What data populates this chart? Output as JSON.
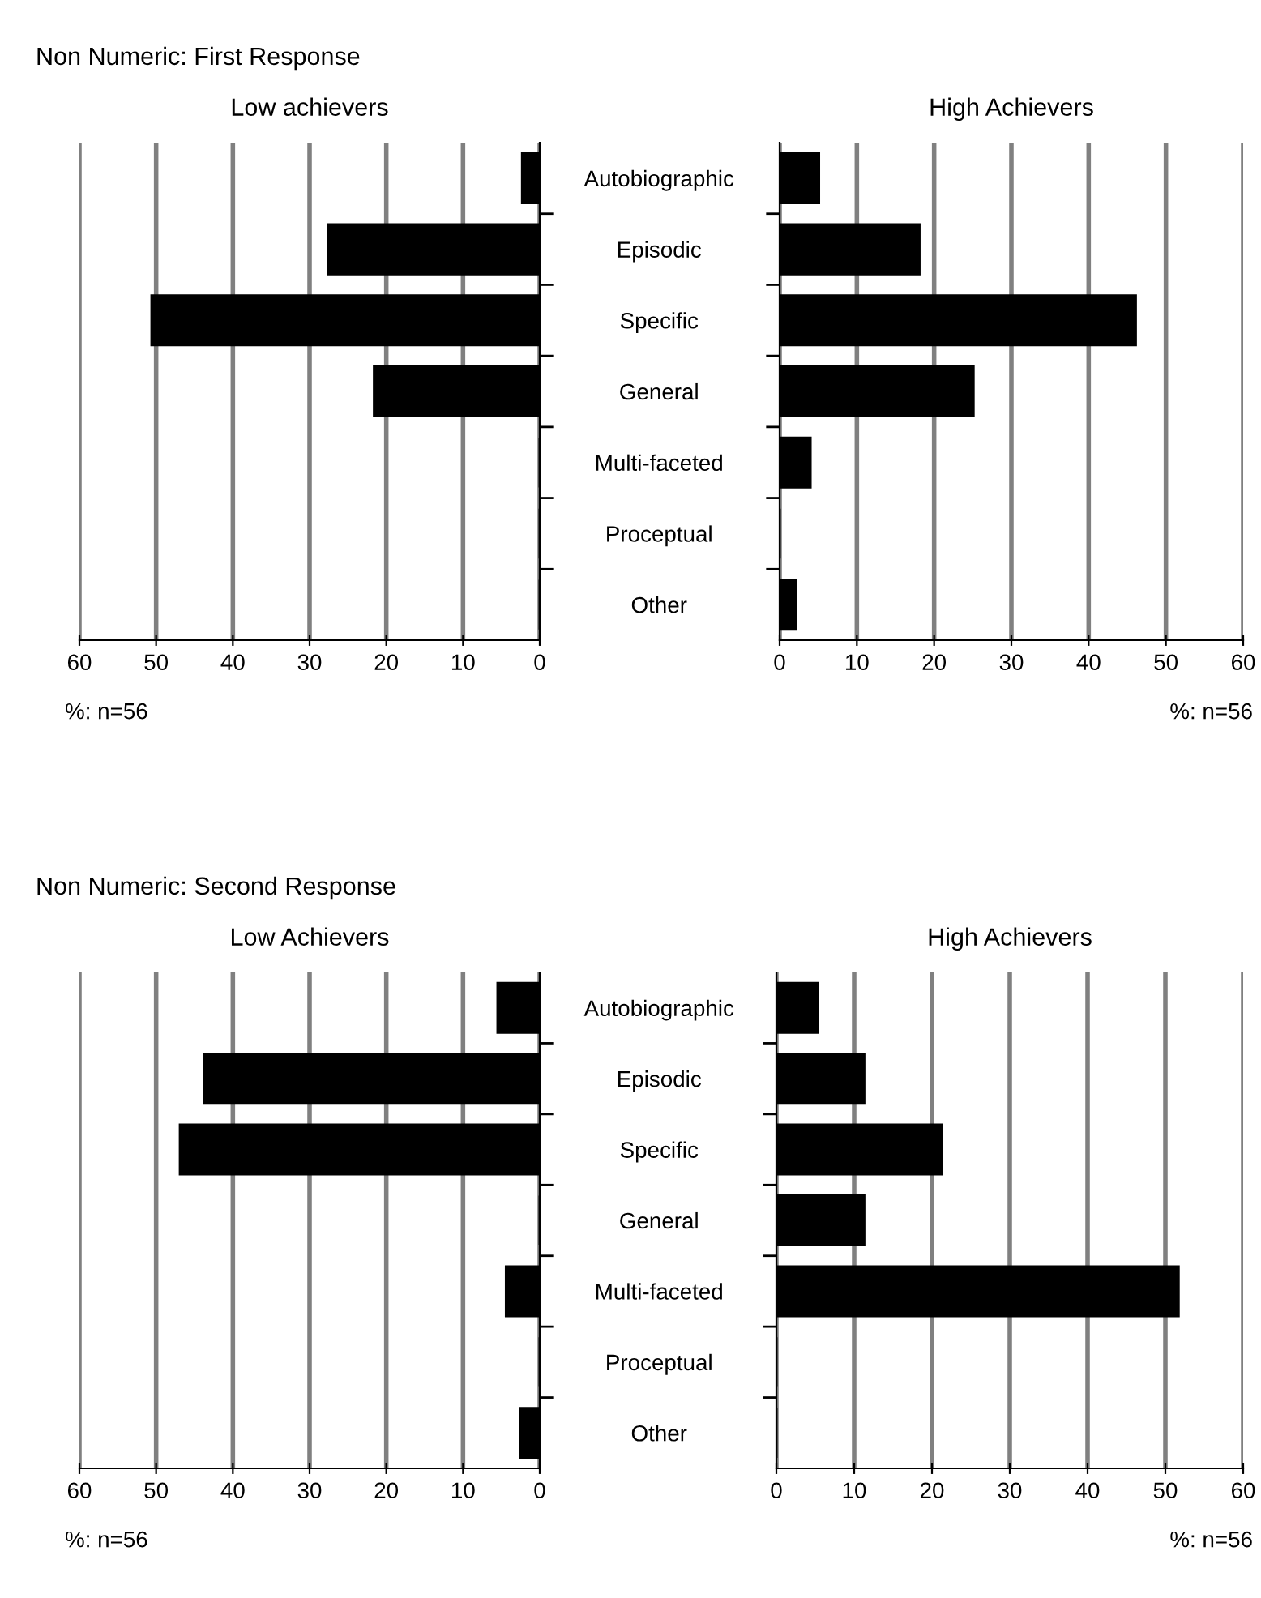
{
  "chart_data": [
    {
      "type": "bar",
      "orientation": "horizontal",
      "title": "Non Numeric: First Response",
      "subtitle": "Low achievers",
      "categories": [
        "Autobiographic",
        "Episodic",
        "Specific",
        "General",
        "Multi-faceted",
        "Proceptual",
        "Other"
      ],
      "values": [
        2.3,
        27.6,
        50.6,
        21.6,
        0,
        0,
        0
      ],
      "color": "#000000",
      "xlim": [
        60,
        0
      ],
      "xticks": [
        0,
        10,
        20,
        30,
        40,
        50,
        60
      ],
      "grid": "x",
      "annotations": [
        "%: n=56"
      ]
    },
    {
      "type": "bar",
      "orientation": "horizontal",
      "subtitle": "High Achievers",
      "categories": [
        null,
        null,
        null,
        null,
        null,
        null,
        null
      ],
      "values": [
        5.1,
        18.1,
        46.1,
        25.1,
        4.0,
        0,
        2.1
      ],
      "color": "#000000",
      "xlim": [
        0,
        60
      ],
      "xticks": [
        0,
        10,
        20,
        30,
        40,
        50,
        60
      ],
      "grid": "x",
      "tick_labels": "x",
      "annotations": [
        "%: n=56"
      ]
    },
    {
      "type": "bar",
      "orientation": "horizontal",
      "title": "Non Numeric: Second Response",
      "subtitle": "Low Achievers",
      "categories": [
        "Autobiographic",
        "Episodic",
        "Specific",
        "General",
        "Multi-faceted",
        "Proceptual",
        "Other"
      ],
      "values": [
        5.5,
        43.7,
        46.9,
        0,
        4.4,
        0,
        2.5
      ],
      "color": "#000000",
      "xlim": [
        60,
        0
      ],
      "xticks": [
        0,
        10,
        20,
        30,
        40,
        50,
        60
      ],
      "grid": "x",
      "annotations": [
        "%: n=56"
      ]
    },
    {
      "type": "bar",
      "orientation": "horizontal",
      "subtitle": "High Achievers",
      "categories": [
        null,
        null,
        null,
        null,
        null,
        null,
        null
      ],
      "values": [
        5.3,
        11.3,
        21.3,
        11.3,
        51.7,
        0,
        0
      ],
      "color": "#000000",
      "xlim": [
        0,
        60
      ],
      "xticks": [
        0,
        10,
        20,
        30,
        40,
        50,
        60
      ],
      "grid": "x",
      "tick_labels": "x",
      "annotations": [
        "%: n=56"
      ]
    }
  ]
}
